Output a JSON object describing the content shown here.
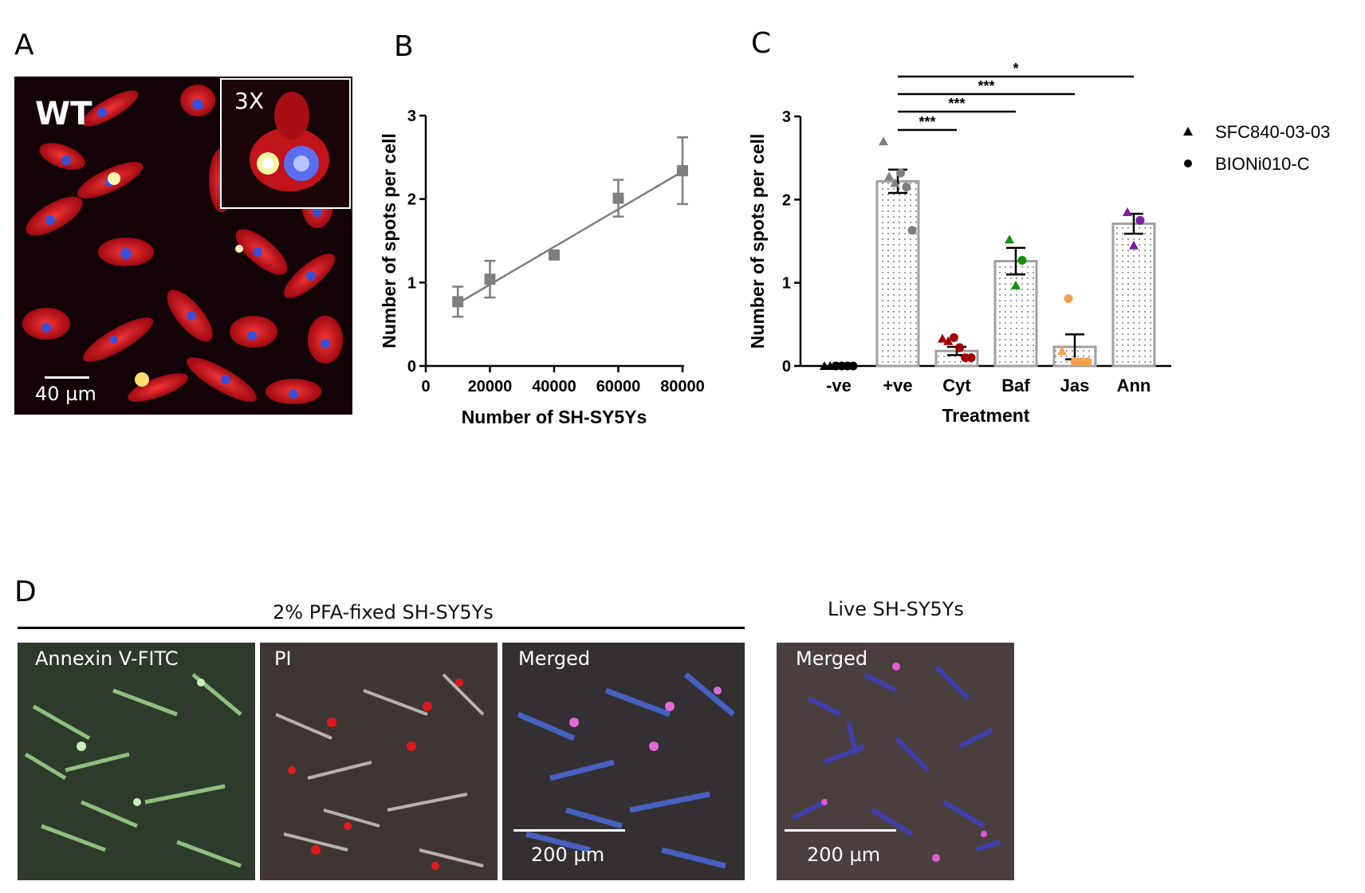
{
  "panels": {
    "A": {
      "letter": "A",
      "genotype_label": "WT",
      "inset_label": "3X",
      "scalebar_label": "40 µm"
    },
    "B": {
      "letter": "B"
    },
    "C": {
      "letter": "C"
    },
    "D": {
      "letter": "D",
      "fixed_header": "2% PFA-fixed SH-SY5Ys",
      "live_header": "Live SH-SY5Ys",
      "images": [
        {
          "label": "Annexin V-FITC",
          "scalebar": ""
        },
        {
          "label": "PI",
          "scalebar": ""
        },
        {
          "label": "Merged",
          "scalebar": "200 µm"
        },
        {
          "label": "Merged",
          "scalebar": "200 µm"
        }
      ]
    }
  },
  "chart_data": [
    {
      "type": "scatter",
      "panel": "B",
      "xlabel": "Number of SH-SY5Ys",
      "ylabel": "Number of spots per cell",
      "xlim": [
        0,
        80000
      ],
      "ylim": [
        0,
        3
      ],
      "xticks": [
        "0",
        "20000",
        "40000",
        "60000",
        "80000"
      ],
      "yticks": [
        "0",
        "1",
        "2",
        "3"
      ],
      "points": [
        {
          "x": 10000,
          "y": 0.77,
          "err": 0.18
        },
        {
          "x": 20000,
          "y": 1.04,
          "err": 0.22
        },
        {
          "x": 40000,
          "y": 1.33,
          "err": 0.0
        },
        {
          "x": 60000,
          "y": 2.01,
          "err": 0.22
        },
        {
          "x": 80000,
          "y": 2.34,
          "err": 0.4
        }
      ],
      "fit_line": [
        [
          10000,
          0.75
        ],
        [
          80000,
          2.33
        ]
      ],
      "color": "#7f7f7f"
    },
    {
      "type": "bar",
      "panel": "C",
      "xlabel": "Treatment",
      "ylabel": "Number of spots per cell",
      "ylim": [
        0,
        3
      ],
      "yticks": [
        "0",
        "1",
        "2",
        "3"
      ],
      "categories": [
        "-ve",
        "+ve",
        "Cyt",
        "Baf",
        "Jas",
        "Ann"
      ],
      "values": [
        0.0,
        2.22,
        0.18,
        1.26,
        0.23,
        1.71
      ],
      "errors": [
        0.01,
        0.14,
        0.05,
        0.16,
        0.15,
        0.12
      ],
      "colors": [
        "#000000",
        "#808080",
        "#a50000",
        "#138f13",
        "#f8a14a",
        "#7a1fa2"
      ],
      "points": [
        {
          "tri": [
            0.0,
            0.0
          ],
          "dot": [
            0.0,
            0.0,
            0.0,
            0.0
          ]
        },
        {
          "tri": [
            2.7,
            2.28,
            2.2
          ],
          "dot": [
            2.32,
            2.15,
            1.63
          ]
        },
        {
          "tri": [
            0.33,
            0.3
          ],
          "dot": [
            0.34,
            0.22,
            0.1,
            0.1
          ]
        },
        {
          "tri": [
            1.52,
            0.97
          ],
          "dot": [
            1.27
          ]
        },
        {
          "tri": [
            0.18
          ],
          "dot": [
            0.81,
            0.05,
            0.05,
            0.05
          ]
        },
        {
          "tri": [
            1.85,
            1.45
          ],
          "dot": [
            1.75
          ]
        }
      ],
      "significance": [
        {
          "from": "+ve",
          "to": "Ann",
          "label": "*"
        },
        {
          "from": "+ve",
          "to": "Jas",
          "label": "***"
        },
        {
          "from": "+ve",
          "to": "Baf",
          "label": "***"
        },
        {
          "from": "+ve",
          "to": "Cyt",
          "label": "***"
        }
      ],
      "legend": [
        {
          "marker": "triangle",
          "label": "SFC840-03-03"
        },
        {
          "marker": "circle",
          "label": "BIONi010-C"
        }
      ]
    }
  ]
}
